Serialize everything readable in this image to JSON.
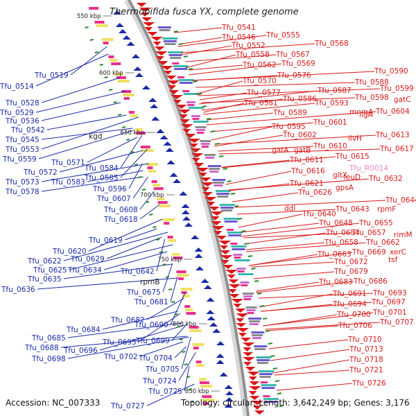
{
  "title": "Thermobifida fusca YX, complete genome",
  "footer": {
    "accession": "Accession: NC_007333",
    "summary": "Topology: circular; Length: 3,642,249 bp; Genes: 3,176"
  },
  "colors": {
    "forward_strand": "#1a2aa8",
    "reverse_strand": "#d81818",
    "backbone": "#9a9a9a",
    "rna_label": "#f08ac0",
    "tick": "#2a8a2a"
  },
  "scale_ticks": [
    "550 kbp",
    "600 kbp",
    "650 kbp",
    "700 kbp",
    "750 kbp",
    "800 kbp",
    "850 kbp"
  ],
  "left_labels": [
    "Tfu_0514",
    "Tfu_0519",
    "Tfu_0528",
    "Tfu_0529",
    "Tfu_0536",
    "Tfu_0542",
    "Tfu_0545",
    "Tfu_0553",
    "Tfu_0559",
    "Tfu_0571",
    "Tfu_0572",
    "Tfu_0573",
    "Tfu_0578",
    "Tfu_0583",
    "Tfu_0584",
    "Tfu_0585",
    "Tfu_0596",
    "Tfu_0607",
    "Tfu_0608",
    "Tfu_0618",
    "Tfu_0619",
    "Tfu_0620",
    "Tfu_0622",
    "Tfu_0625",
    "Tfu_0629",
    "Tfu_0634",
    "Tfu_0635",
    "Tfu_0636",
    "Tfu_0642",
    "Tfu_0675",
    "Tfu_0681",
    "Tfu_0682",
    "Tfu_0684",
    "Tfu_0685",
    "Tfu_0688",
    "Tfu_0690",
    "Tfu_0695",
    "Tfu_0696",
    "Tfu_0698",
    "Tfu_0699",
    "Tfu_0702",
    "Tfu_0704",
    "Tfu_0705",
    "Tfu_0724",
    "Tfu_0725",
    "Tfu_0727"
  ],
  "left_black_labels": [
    "kgd",
    "rpmB"
  ],
  "right_labels": [
    "Tfu_0541",
    "Tfu_0546",
    "Tfu_0552",
    "Tfu_0555",
    "Tfu_0558",
    "Tfu_0562",
    "Tfu_0567",
    "Tfu_0568",
    "Tfu_0569",
    "Tfu_0570",
    "Tfu_0576",
    "Tfu_0577",
    "Tfu_0581",
    "Tfu_0586",
    "Tfu_0587",
    "Tfu_0588",
    "Tfu_0589",
    "Tfu_0590",
    "Tfu_0593",
    "Tfu_0595",
    "Tfu_0598",
    "Tfu_0599",
    "Tfu_0601",
    "Tfu_0602",
    "Tfu_0604",
    "Tfu_0610",
    "Tfu_0611",
    "Tfu_0613",
    "Tfu_0615",
    "Tfu_0616",
    "Tfu_0617",
    "Tfu_0621",
    "Tfu_0626",
    "Tfu_0632",
    "Tfu_0640",
    "Tfu_0643",
    "Tfu_0644",
    "Tfu_0648",
    "Tfu_0654",
    "Tfu_0655",
    "Tfu_0657",
    "Tfu_0658",
    "Tfu_0662",
    "Tfu_0663",
    "Tfu_0669",
    "Tfu_0672",
    "Tfu_0679",
    "Tfu_0683",
    "Tfu_0686",
    "Tfu_0691",
    "Tfu_0693",
    "Tfu_0694",
    "Tfu_0697",
    "Tfu_0700",
    "Tfu_0701",
    "Tfu_0706",
    "Tfu_0707",
    "Tfu_0710",
    "Tfu_0713",
    "Tfu_0718",
    "Tfu_0721",
    "Tfu_0726"
  ],
  "right_gene_labels": [
    "mnmA",
    "ligA",
    "gatC",
    "ilvH",
    "gatA",
    "gatB",
    "gltX",
    "leuD",
    "gpsA",
    "ddl",
    "rpmF",
    "rimM",
    "xerC",
    "tsf"
  ],
  "right_rna_labels": [
    "Tfu_R0014"
  ]
}
